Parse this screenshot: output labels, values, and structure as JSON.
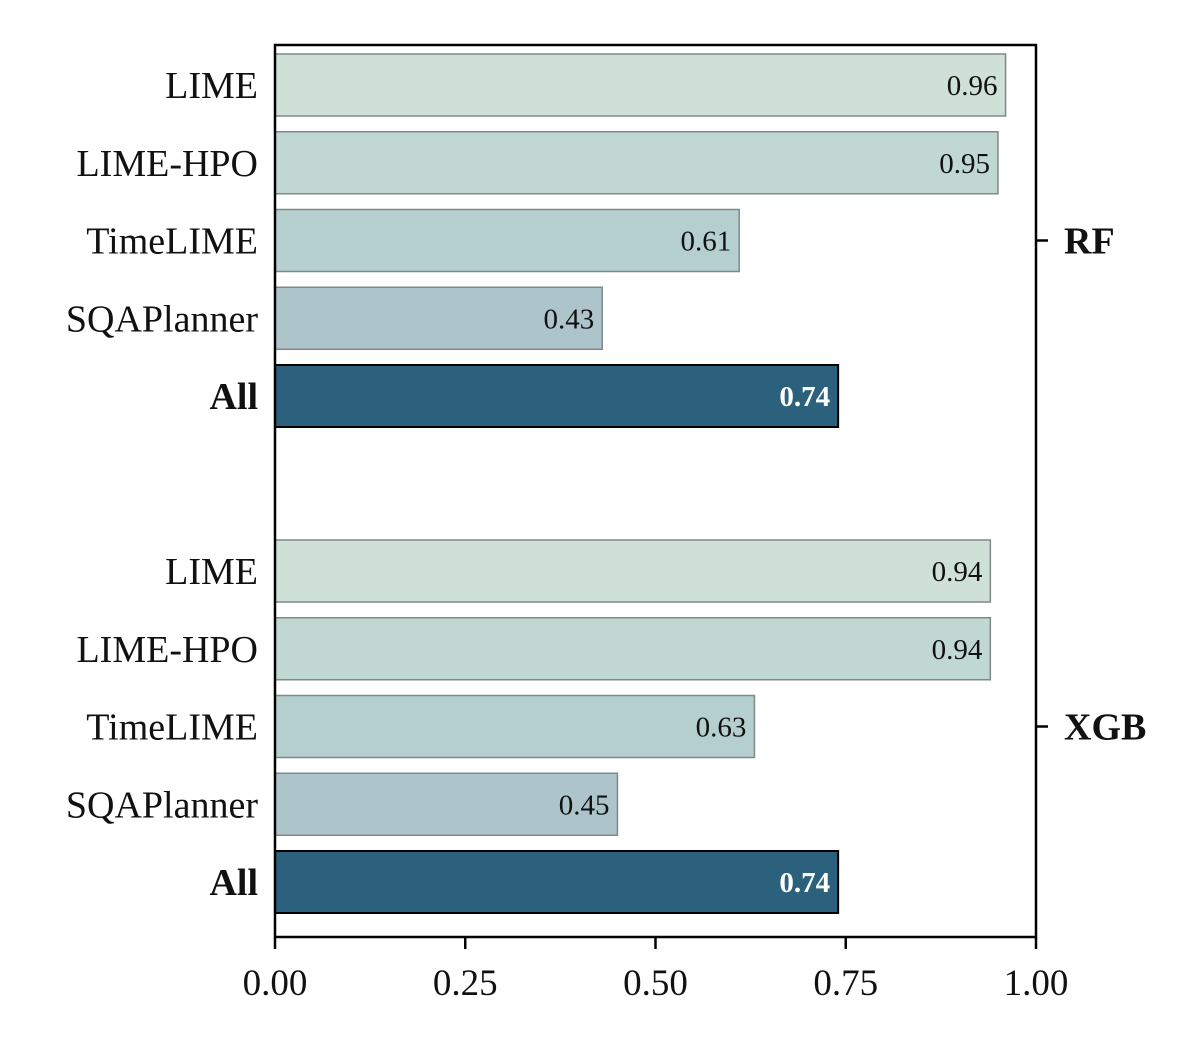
{
  "chart_data": {
    "type": "bar",
    "orientation": "horizontal",
    "xlim": [
      0,
      1
    ],
    "x_ticks": [
      "0.00",
      "0.25",
      "0.50",
      "0.75",
      "1.00"
    ],
    "x_tick_values": [
      0,
      0.25,
      0.5,
      0.75,
      1.0
    ],
    "grid": false,
    "groups": [
      {
        "name": "RF",
        "bars": [
          {
            "label": "LIME",
            "value": 0.96,
            "value_label": "0.96",
            "color": "#cfe1d6",
            "highlight": false
          },
          {
            "label": "LIME-HPO",
            "value": 0.95,
            "value_label": "0.95",
            "color": "#c0d7d2",
            "highlight": false
          },
          {
            "label": "TimeLIME",
            "value": 0.61,
            "value_label": "0.61",
            "color": "#b5cfcf",
            "highlight": false
          },
          {
            "label": "SQAPlanner",
            "value": 0.43,
            "value_label": "0.43",
            "color": "#adc5ca",
            "highlight": false
          },
          {
            "label": "All",
            "value": 0.74,
            "value_label": "0.74",
            "color": "#2b617c",
            "highlight": true
          }
        ]
      },
      {
        "name": "XGB",
        "bars": [
          {
            "label": "LIME",
            "value": 0.94,
            "value_label": "0.94",
            "color": "#cfe1d6",
            "highlight": false
          },
          {
            "label": "LIME-HPO",
            "value": 0.94,
            "value_label": "0.94",
            "color": "#c0d7d2",
            "highlight": false
          },
          {
            "label": "TimeLIME",
            "value": 0.63,
            "value_label": "0.63",
            "color": "#b5cfcf",
            "highlight": false
          },
          {
            "label": "SQAPlanner",
            "value": 0.45,
            "value_label": "0.45",
            "color": "#adc5ca",
            "highlight": false
          },
          {
            "label": "All",
            "value": 0.74,
            "value_label": "0.74",
            "color": "#2b617c",
            "highlight": true
          }
        ]
      }
    ]
  }
}
